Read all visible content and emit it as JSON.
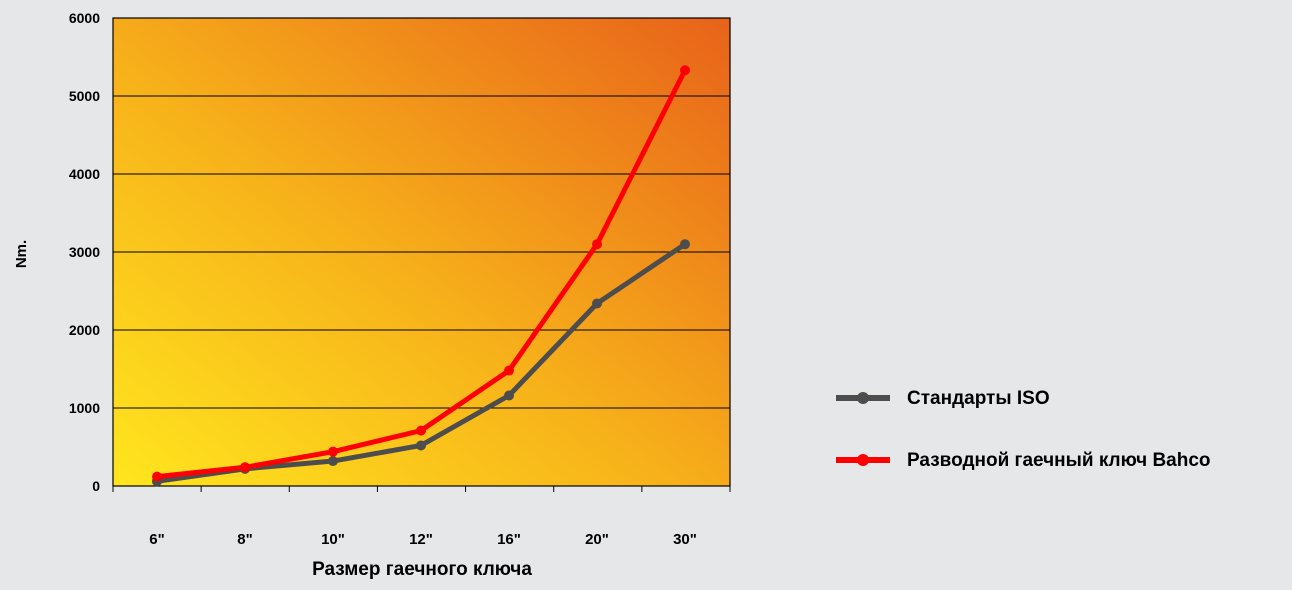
{
  "chart_data": {
    "type": "line",
    "title": "",
    "xlabel": "Размер гаечного ключа",
    "ylabel": "Nm.",
    "categories": [
      "6\"",
      "8\"",
      "10\"",
      "12\"",
      "16\"",
      "20\"",
      "30\""
    ],
    "ylim": [
      0,
      6000
    ],
    "yticks": [
      "0",
      "1000",
      "2000",
      "3000",
      "4000",
      "5000",
      "6000"
    ],
    "grid": true,
    "legend_position": "right",
    "series": [
      {
        "name": "Стандарты ISO",
        "color": "#4d4d4d",
        "values": [
          60,
          220,
          320,
          520,
          1160,
          2340,
          3100
        ]
      },
      {
        "name": "Разводной гаечный ключ Bahco",
        "color": "#ff0000",
        "values": [
          120,
          240,
          440,
          710,
          1480,
          3100,
          5330
        ]
      }
    ],
    "background_gradient": [
      "#ffe61e",
      "#e8621a"
    ]
  }
}
